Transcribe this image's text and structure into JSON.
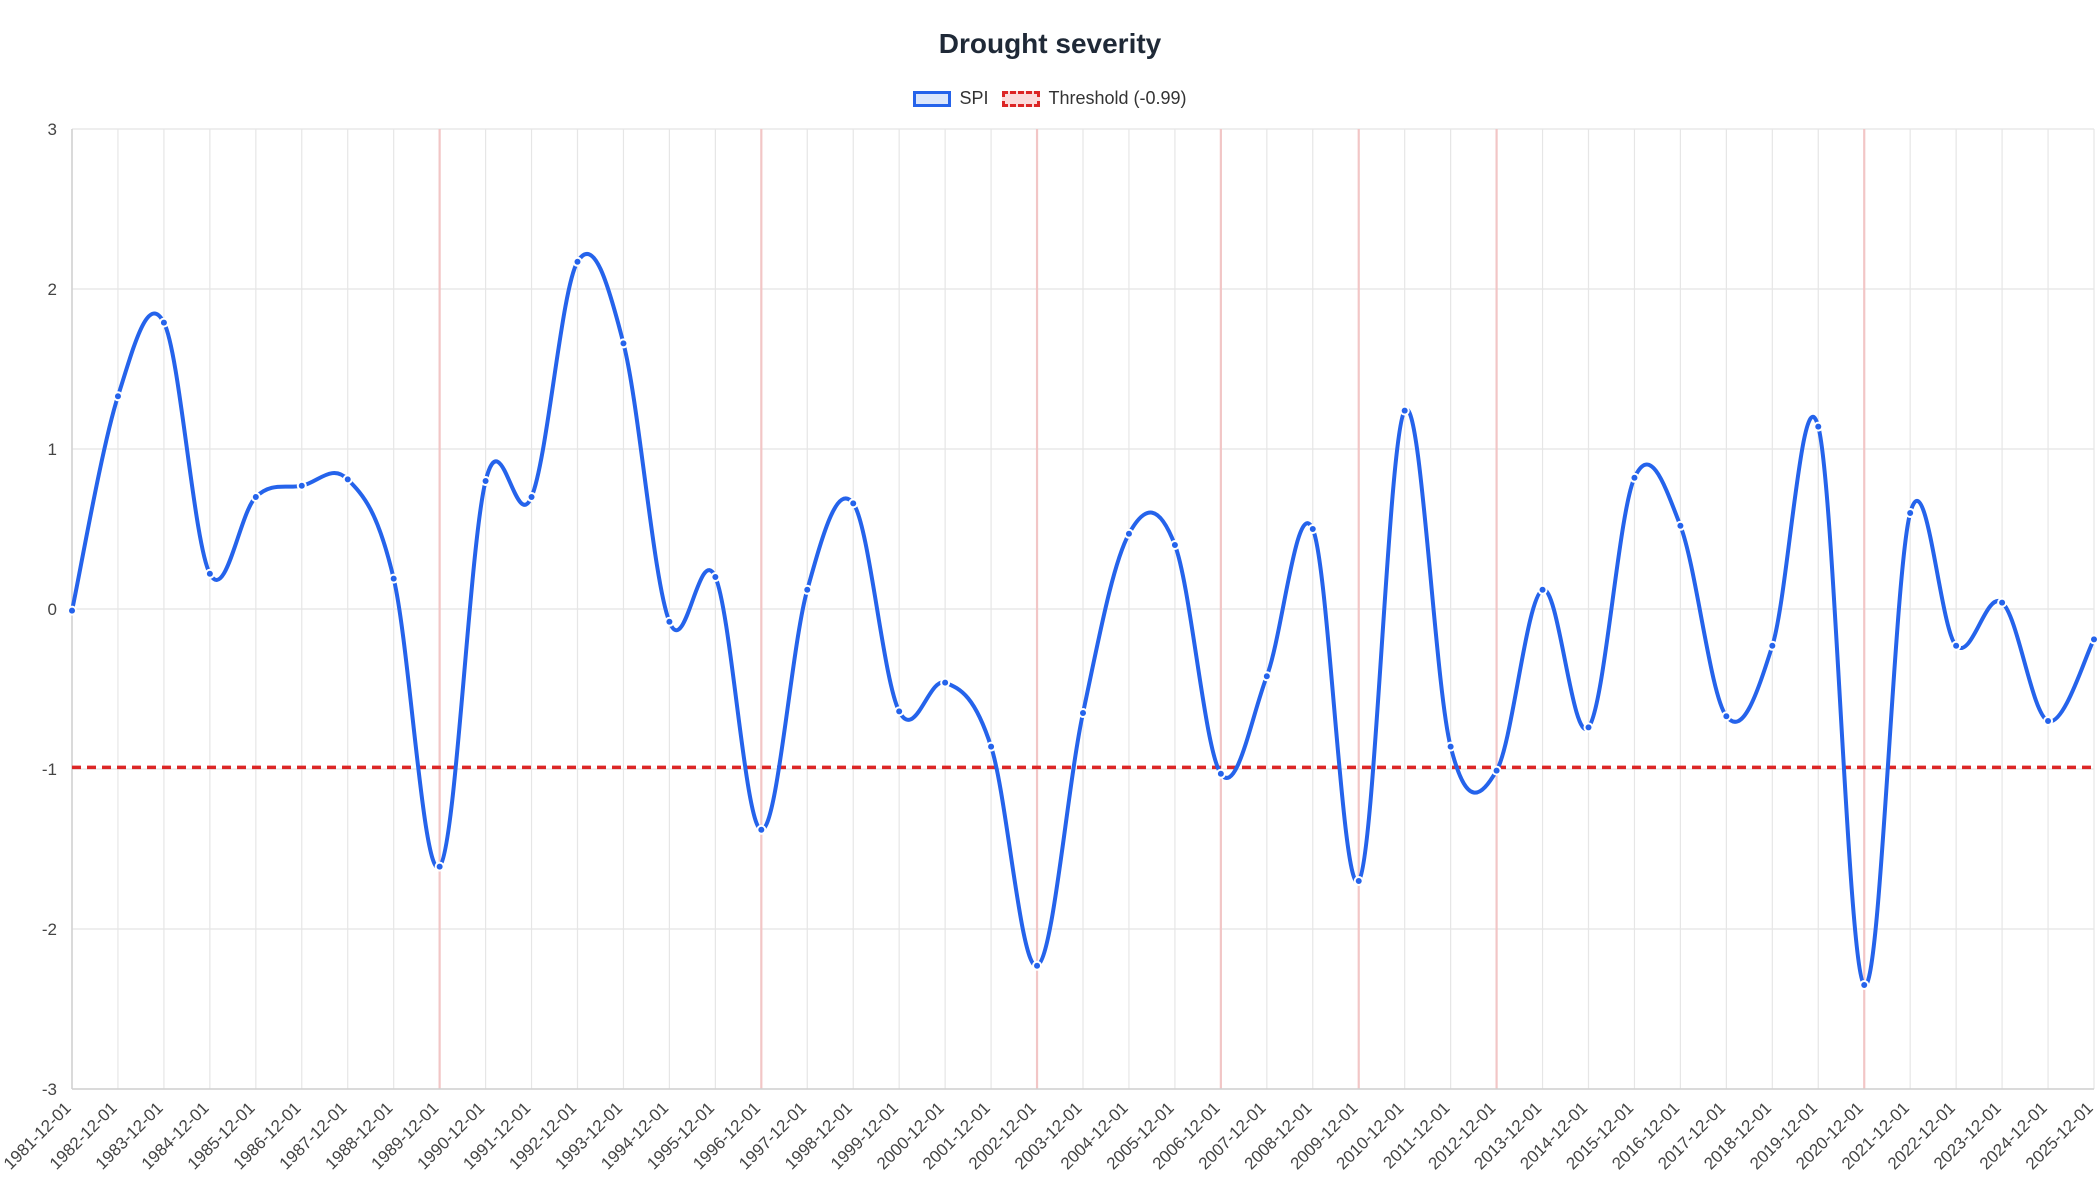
{
  "chart_data": {
    "type": "line",
    "title": "Drought severity",
    "x": [
      "1981-12-01",
      "1982-12-01",
      "1983-12-01",
      "1984-12-01",
      "1985-12-01",
      "1986-12-01",
      "1987-12-01",
      "1988-12-01",
      "1989-12-01",
      "1990-12-01",
      "1991-12-01",
      "1992-12-01",
      "1993-12-01",
      "1994-12-01",
      "1995-12-01",
      "1996-12-01",
      "1997-12-01",
      "1998-12-01",
      "1999-12-01",
      "2000-12-01",
      "2001-12-01",
      "2002-12-01",
      "2003-12-01",
      "2004-12-01",
      "2005-12-01",
      "2006-12-01",
      "2007-12-01",
      "2008-12-01",
      "2009-12-01",
      "2010-12-01",
      "2011-12-01",
      "2012-12-01",
      "2013-12-01",
      "2014-12-01",
      "2015-12-01",
      "2016-12-01",
      "2017-12-01",
      "2018-12-01",
      "2019-12-01",
      "2020-12-01",
      "2021-12-01",
      "2022-12-01",
      "2023-12-01",
      "2024-12-01",
      "2025-12-01"
    ],
    "series": [
      {
        "name": "SPI",
        "color": "#2563eb",
        "values": [
          -0.01,
          1.33,
          1.79,
          0.22,
          0.7,
          0.77,
          0.81,
          0.19,
          -1.61,
          0.8,
          0.7,
          2.17,
          1.66,
          -0.08,
          0.2,
          -1.38,
          0.12,
          0.66,
          -0.64,
          -0.46,
          -0.86,
          -2.23,
          -0.65,
          0.47,
          0.4,
          -1.03,
          -0.42,
          0.5,
          -1.7,
          1.24,
          -0.86,
          -1.01,
          0.12,
          -0.74,
          0.82,
          0.52,
          -0.67,
          -0.23,
          1.14,
          -2.35,
          0.6,
          -0.23,
          0.04,
          -0.7,
          -0.19
        ]
      },
      {
        "name": "Threshold (-0.99)",
        "color": "#dc2626",
        "value": -0.99
      }
    ],
    "ylim": [
      -3,
      3
    ],
    "yticks": [
      3,
      2,
      1,
      0,
      -1,
      -2,
      -3
    ],
    "grid": true,
    "legend_position": "top",
    "highlighted_years": [
      "1989-12-01",
      "1996-12-01",
      "2002-12-01",
      "2006-12-01",
      "2009-12-01",
      "2012-12-01",
      "2020-12-01"
    ]
  }
}
